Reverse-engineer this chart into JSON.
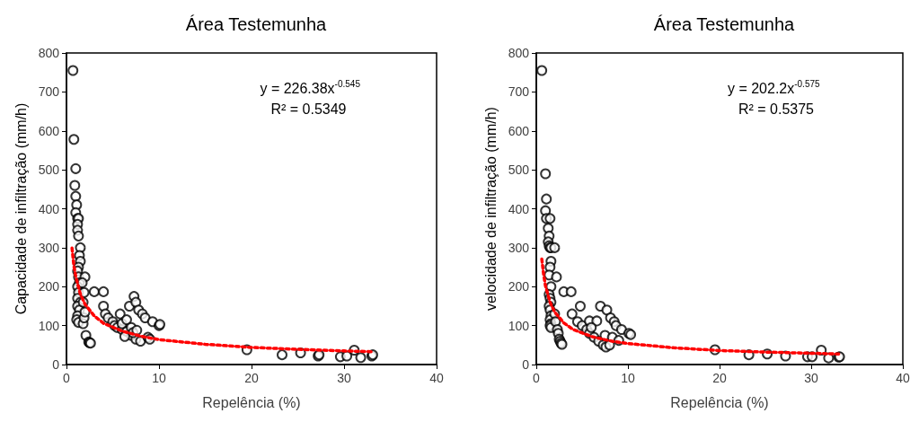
{
  "chart_data": [
    {
      "type": "scatter",
      "title": "Área Testemunha",
      "xlabel": "Repelência (%)",
      "ylabel": "Capacidade de infiltração (mm/h)",
      "xlim": [
        0,
        40
      ],
      "xticks": [
        0,
        10,
        20,
        30,
        40
      ],
      "ylim": [
        0,
        800
      ],
      "yticks": [
        0,
        100,
        200,
        300,
        400,
        500,
        600,
        700,
        800
      ],
      "grid": false,
      "annotations": [
        "y = 226.38x$^{-0.545}$",
        "R² = 0.5349"
      ],
      "series": [
        {
          "color": "#000000",
          "marker": "circle",
          "x": [
            0.7,
            0.8,
            1.0,
            0.9,
            1.0,
            1.1,
            1.0,
            1.2,
            1.3,
            1.2,
            1.2,
            1.3,
            1.5,
            1.4,
            1.5,
            1.3,
            1.2,
            1.3,
            1.4,
            1.2,
            1.3,
            1.2,
            1.5,
            1.2,
            1.4,
            1.2,
            1.1,
            1.3,
            1.8,
            1.9,
            2.0,
            1.8,
            1.9,
            2.0,
            1.7,
            2.1,
            2.4,
            2.5,
            2.6,
            3.0,
            4.0,
            4.0,
            4.2,
            4.5,
            5.0,
            5.2,
            5.5,
            6.0,
            6.5,
            7.0,
            7.5,
            8.0,
            5.8,
            6.8,
            7.3,
            7.5,
            7.8,
            8.2,
            8.5,
            9.3,
            10.0,
            10.1,
            6.0,
            6.5,
            7.0,
            7.2,
            7.6,
            8.8,
            9.0,
            6.3,
            19.5,
            23.3,
            25.3,
            27.2,
            27.3,
            29.6,
            30.3,
            31.1,
            31.8,
            33.0,
            33.1
          ],
          "values": [
            755,
            578,
            503,
            460,
            432,
            410,
            390,
            375,
            375,
            360,
            345,
            330,
            300,
            280,
            265,
            250,
            240,
            225,
            210,
            200,
            185,
            170,
            160,
            150,
            140,
            125,
            115,
            108,
            105,
            120,
            135,
            160,
            185,
            225,
            210,
            75,
            58,
            56,
            55,
            187,
            187,
            150,
            130,
            120,
            110,
            100,
            95,
            90,
            85,
            75,
            65,
            60,
            130,
            150,
            175,
            160,
            140,
            130,
            120,
            110,
            100,
            103,
            105,
            115,
            95,
            82,
            88,
            70,
            65,
            72,
            38,
            25,
            30,
            22,
            25,
            20,
            22,
            37,
            18,
            22,
            25
          ]
        },
        {
          "type": "line",
          "color": "#ff0000",
          "marker": "none",
          "line_style": "dotted",
          "x": [
            0.6,
            0.8,
            1,
            1.5,
            2,
            3,
            4,
            6,
            8,
            10,
            15,
            20,
            25,
            30,
            33
          ],
          "values": [
            299,
            254,
            226,
            181,
            155,
            125,
            106,
            86,
            73,
            64,
            52,
            44,
            39,
            35,
            33
          ]
        }
      ]
    },
    {
      "type": "scatter",
      "title": "Área Testemunha",
      "xlabel": "Repelência (%)",
      "ylabel": "velocidade de infiltração (mm/h)",
      "xlim": [
        0,
        40
      ],
      "xticks": [
        0,
        10,
        20,
        30,
        40
      ],
      "ylim": [
        0,
        800
      ],
      "yticks": [
        0,
        100,
        200,
        300,
        400,
        500,
        600,
        700,
        800
      ],
      "grid": false,
      "annotations": [
        "y = 202.2x$^{-0.575}$",
        "R² = 0.5375"
      ],
      "series": [
        {
          "color": "#000000",
          "marker": "circle",
          "x": [
            0.6,
            1.0,
            1.1,
            1.0,
            1.1,
            1.5,
            1.3,
            1.4,
            1.3,
            1.4,
            1.5,
            1.6,
            2.0,
            1.6,
            1.5,
            1.4,
            2.2,
            1.6,
            1.4,
            1.5,
            1.6,
            1.4,
            1.5,
            1.6,
            1.5,
            1.6,
            1.5,
            1.6,
            2.0,
            2.1,
            2.3,
            2.4,
            2.5,
            2.6,
            2.7,
            2.8,
            3.0,
            3.8,
            3.9,
            4.8,
            4.5,
            5.0,
            5.5,
            5.8,
            6.3,
            6.8,
            7.3,
            7.6,
            5.8,
            6.6,
            7.0,
            7.7,
            8.1,
            8.5,
            8.7,
            9.3,
            10.1,
            10.3,
            7.5,
            8.3,
            9.0,
            8.0,
            6.0,
            19.5,
            23.2,
            25.2,
            27.2,
            29.6,
            30.1,
            31.1,
            31.9,
            33.0,
            33.1
          ],
          "values": [
            755,
            490,
            425,
            395,
            375,
            375,
            350,
            330,
            315,
            305,
            300,
            300,
            300,
            265,
            250,
            230,
            225,
            200,
            180,
            170,
            160,
            150,
            140,
            125,
            115,
            105,
            100,
            95,
            130,
            110,
            90,
            80,
            65,
            60,
            55,
            52,
            187,
            187,
            130,
            150,
            110,
            100,
            90,
            80,
            70,
            60,
            50,
            45,
            112,
            112,
            150,
            140,
            120,
            110,
            100,
            90,
            80,
            77,
            75,
            70,
            62,
            50,
            95,
            38,
            25,
            27,
            22,
            20,
            20,
            37,
            17,
            19,
            20
          ]
        },
        {
          "type": "line",
          "color": "#ff0000",
          "marker": "none",
          "line_style": "dotted",
          "x": [
            0.6,
            0.8,
            1,
            1.5,
            2,
            3,
            4,
            6,
            8,
            10,
            15,
            20,
            25,
            30,
            33
          ],
          "values": [
            271,
            231,
            202,
            160,
            135,
            107,
            90,
            72,
            61,
            54,
            43,
            36,
            32,
            29,
            27
          ]
        }
      ]
    }
  ]
}
